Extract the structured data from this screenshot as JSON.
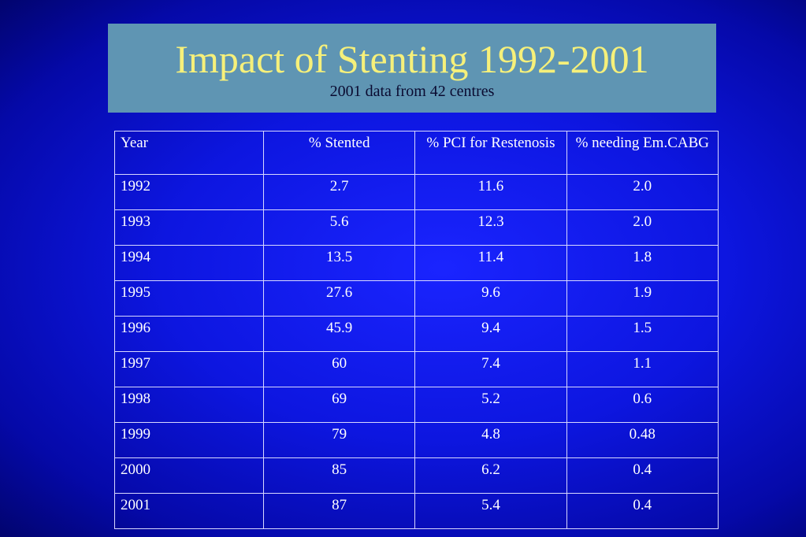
{
  "slide": {
    "title": "Impact of Stenting 1992-2001",
    "subtitle": "2001 data from 42 centres",
    "colors": {
      "background": "#0d16e0",
      "title_box": "#5f95b3",
      "title_text": "#f6f07a",
      "subtitle_text": "#0a0a30",
      "table_text": "#ffffff"
    }
  },
  "table": {
    "headers": [
      "Year",
      "% Stented",
      "% PCI for Restenosis",
      "% needing Em.CABG"
    ],
    "rows": [
      [
        "1992",
        "2.7",
        "11.6",
        "2.0"
      ],
      [
        "1993",
        "5.6",
        "12.3",
        "2.0"
      ],
      [
        "1994",
        "13.5",
        "11.4",
        "1.8"
      ],
      [
        "1995",
        "27.6",
        "9.6",
        "1.9"
      ],
      [
        "1996",
        "45.9",
        "9.4",
        "1.5"
      ],
      [
        "1997",
        "60",
        "7.4",
        "1.1"
      ],
      [
        "1998",
        "69",
        "5.2",
        "0.6"
      ],
      [
        "1999",
        "79",
        "4.8",
        "0.48"
      ],
      [
        "2000",
        "85",
        "6.2",
        "0.4"
      ],
      [
        "2001",
        "87",
        "5.4",
        "0.4"
      ]
    ]
  }
}
